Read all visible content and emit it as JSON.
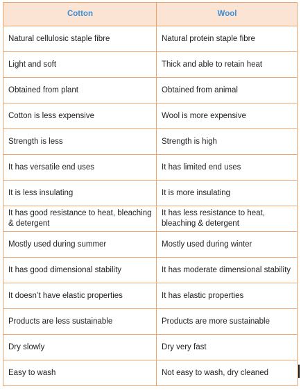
{
  "table": {
    "headers": [
      "Cotton",
      "Wool"
    ],
    "rows": [
      [
        "Natural cellulosic staple fibre",
        "Natural protein staple fibre"
      ],
      [
        "Light and soft",
        "Thick and able to retain heat"
      ],
      [
        "Obtained from plant",
        "Obtained from animal"
      ],
      [
        "Cotton is less expensive",
        "Wool is more expensive"
      ],
      [
        "Strength is less",
        "Strength is high"
      ],
      [
        "It has versatile end uses",
        "It has limited end uses"
      ],
      [
        "It is less insulating",
        "It is more insulating"
      ],
      [
        "It has good resistance to heat, bleaching & detergent",
        "It has less resistance to heat, bleaching & detergent"
      ],
      [
        "Mostly used during summer",
        "Mostly used during winter"
      ],
      [
        "It has good dimensional stability",
        "It has moderate dimensional stability"
      ],
      [
        "It doesn’t have elastic properties",
        "It has elastic properties"
      ],
      [
        "Products are less sustainable",
        "Products are more sustainable"
      ],
      [
        "Dry slowly",
        "Dry very fast"
      ],
      [
        "Easy to wash",
        "Not easy to wash, dry cleaned"
      ]
    ]
  },
  "colors": {
    "header_background": "#fce4d4",
    "header_text": "#3d8fd6",
    "border": "#f0a36a",
    "body_text": "#222222"
  }
}
